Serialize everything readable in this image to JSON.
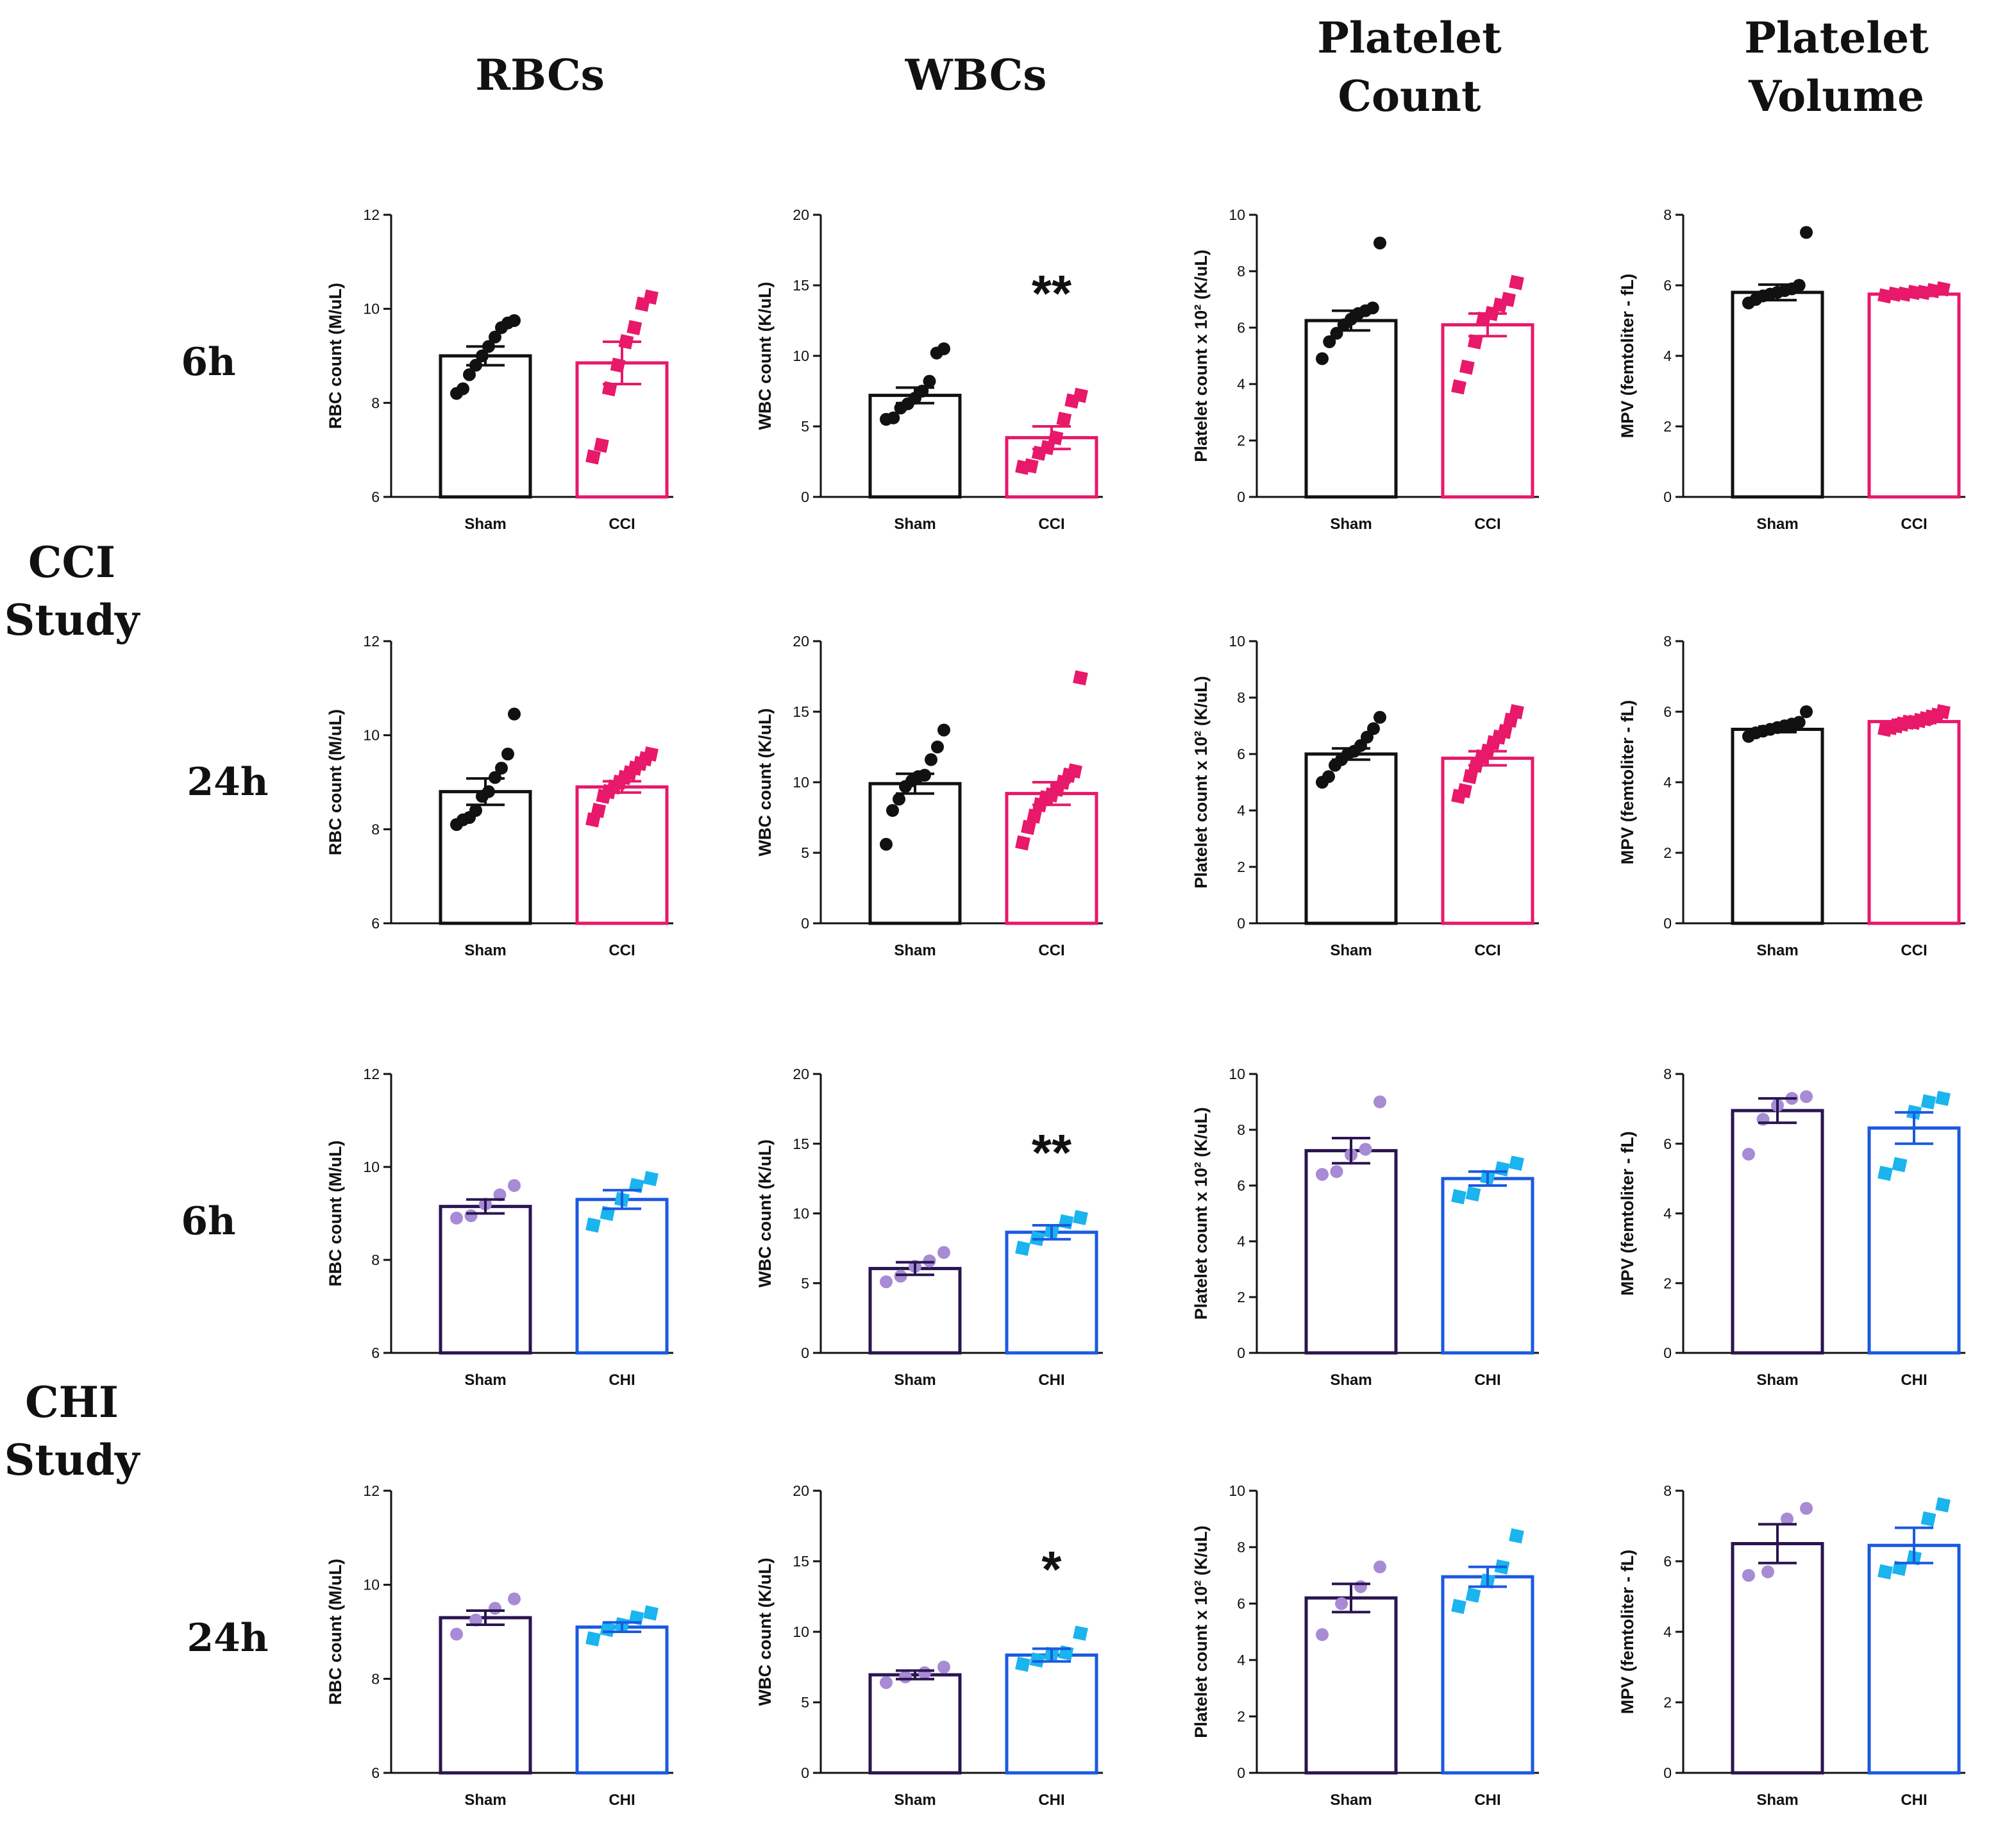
{
  "column_headers": [
    {
      "line1": "RBCs",
      "line2": ""
    },
    {
      "line1": "WBCs",
      "line2": ""
    },
    {
      "line1": "Platelet",
      "line2": "Count"
    },
    {
      "line1": "Platelet",
      "line2": "Volume"
    }
  ],
  "time_labels": [
    "6h",
    "24h",
    "6h",
    "24h"
  ],
  "study_labels": [
    {
      "line1": "CCI",
      "line2": "Study"
    },
    {
      "line1": "CHI",
      "line2": "Study"
    }
  ],
  "colors": {
    "sham_cci": "#111111",
    "cci": "#e8186a",
    "sham_chi_bar": "#2a1550",
    "sham_chi_dot": "#a78bd4",
    "chi_bar": "#1a5ae0",
    "chi_dot": "#1ab4ee"
  },
  "chart_data": [
    {
      "type": "bar",
      "row": 0,
      "col": 0,
      "ylabel": "RBC count (M/uL)",
      "ylim": [
        6,
        12
      ],
      "yticks": [
        6,
        8,
        10,
        12
      ],
      "categories": [
        "Sham",
        "CCI"
      ],
      "series": [
        {
          "name": "Sham",
          "mean": 9.0,
          "sem": 0.2,
          "points": [
            8.2,
            8.3,
            8.6,
            8.8,
            9.0,
            9.2,
            9.4,
            9.6,
            9.7,
            9.75
          ]
        },
        {
          "name": "CCI",
          "mean": 8.85,
          "sem": 0.45,
          "points": [
            6.85,
            7.1,
            8.3,
            8.8,
            9.3,
            9.6,
            10.1,
            10.25
          ]
        }
      ],
      "significance": ""
    },
    {
      "type": "bar",
      "row": 0,
      "col": 1,
      "ylabel": "WBC count (K/uL)",
      "ylim": [
        0,
        20
      ],
      "yticks": [
        0,
        5,
        10,
        15,
        20
      ],
      "categories": [
        "Sham",
        "CCI"
      ],
      "series": [
        {
          "name": "Sham",
          "mean": 7.2,
          "sem": 0.55,
          "points": [
            5.5,
            5.6,
            6.3,
            6.6,
            7.0,
            7.5,
            8.2,
            10.2,
            10.5
          ]
        },
        {
          "name": "CCI",
          "mean": 4.2,
          "sem": 0.8,
          "points": [
            2.1,
            2.2,
            3.1,
            3.5,
            4.2,
            5.5,
            6.8,
            7.2
          ]
        }
      ],
      "significance": "**"
    },
    {
      "type": "bar",
      "row": 0,
      "col": 2,
      "ylabel": "Platelet count x 10² (K/uL)",
      "ylim": [
        0,
        10
      ],
      "yticks": [
        0,
        2,
        4,
        6,
        8,
        10
      ],
      "categories": [
        "Sham",
        "CCI"
      ],
      "series": [
        {
          "name": "Sham",
          "mean": 6.25,
          "sem": 0.35,
          "points": [
            4.9,
            5.5,
            5.8,
            6.1,
            6.3,
            6.5,
            6.6,
            6.7,
            9.0
          ]
        },
        {
          "name": "CCI",
          "mean": 6.1,
          "sem": 0.4,
          "points": [
            3.9,
            4.6,
            5.5,
            6.3,
            6.5,
            6.8,
            7.0,
            7.6
          ]
        }
      ],
      "significance": ""
    },
    {
      "type": "bar",
      "row": 0,
      "col": 3,
      "ylabel": "MPV (femtoliter - fL)",
      "ylim": [
        0,
        8
      ],
      "yticks": [
        0,
        2,
        4,
        6,
        8
      ],
      "categories": [
        "Sham",
        "CCI"
      ],
      "series": [
        {
          "name": "Sham",
          "mean": 5.8,
          "sem": 0.22,
          "points": [
            5.5,
            5.6,
            5.7,
            5.75,
            5.8,
            5.85,
            5.9,
            6.0,
            7.5
          ]
        },
        {
          "name": "CCI",
          "mean": 5.75,
          "sem": 0.05,
          "points": [
            5.7,
            5.75,
            5.75,
            5.8,
            5.8,
            5.85,
            5.9
          ]
        }
      ],
      "significance": ""
    },
    {
      "type": "bar",
      "row": 1,
      "col": 0,
      "ylabel": "RBC count (M/uL)",
      "ylim": [
        6,
        12
      ],
      "yticks": [
        6,
        8,
        10,
        12
      ],
      "categories": [
        "Sham",
        "CCI"
      ],
      "series": [
        {
          "name": "Sham",
          "mean": 8.8,
          "sem": 0.28,
          "points": [
            8.1,
            8.2,
            8.25,
            8.4,
            8.7,
            8.8,
            9.1,
            9.3,
            9.6,
            10.45
          ]
        },
        {
          "name": "CCI",
          "mean": 8.9,
          "sem": 0.12,
          "points": [
            8.2,
            8.4,
            8.7,
            8.8,
            8.9,
            9.0,
            9.1,
            9.2,
            9.3,
            9.4,
            9.5,
            9.6
          ]
        }
      ],
      "significance": ""
    },
    {
      "type": "bar",
      "row": 1,
      "col": 1,
      "ylabel": "WBC count (K/uL)",
      "ylim": [
        0,
        20
      ],
      "yticks": [
        0,
        5,
        10,
        15,
        20
      ],
      "categories": [
        "Sham",
        "CCI"
      ],
      "series": [
        {
          "name": "Sham",
          "mean": 9.9,
          "sem": 0.7,
          "points": [
            5.6,
            8.0,
            8.8,
            9.7,
            10.1,
            10.4,
            10.5,
            11.6,
            12.5,
            13.7
          ]
        },
        {
          "name": "CCI",
          "mean": 9.2,
          "sem": 0.8,
          "points": [
            5.7,
            6.8,
            7.6,
            8.4,
            8.9,
            9.1,
            9.5,
            10.0,
            10.5,
            10.8,
            17.4
          ]
        }
      ],
      "significance": ""
    },
    {
      "type": "bar",
      "row": 1,
      "col": 2,
      "ylabel": "Platelet count x 10² (K/uL)",
      "ylim": [
        0,
        10
      ],
      "yticks": [
        0,
        2,
        4,
        6,
        8,
        10
      ],
      "categories": [
        "Sham",
        "CCI"
      ],
      "series": [
        {
          "name": "Sham",
          "mean": 6.0,
          "sem": 0.2,
          "points": [
            5.0,
            5.2,
            5.6,
            5.8,
            6.0,
            6.1,
            6.3,
            6.6,
            6.9,
            7.3
          ]
        },
        {
          "name": "CCI",
          "mean": 5.85,
          "sem": 0.25,
          "points": [
            4.5,
            4.7,
            5.2,
            5.6,
            5.9,
            6.1,
            6.4,
            6.6,
            6.8,
            7.2,
            7.5
          ]
        }
      ],
      "significance": ""
    },
    {
      "type": "bar",
      "row": 1,
      "col": 3,
      "ylabel": "MPV (femtoliter - fL)",
      "ylim": [
        0,
        8
      ],
      "yticks": [
        0,
        2,
        4,
        6,
        8
      ],
      "categories": [
        "Sham",
        "CCI"
      ],
      "series": [
        {
          "name": "Sham",
          "mean": 5.5,
          "sem": 0.08,
          "points": [
            5.3,
            5.4,
            5.45,
            5.5,
            5.55,
            5.6,
            5.65,
            5.7,
            6.0
          ]
        },
        {
          "name": "CCI",
          "mean": 5.72,
          "sem": 0.06,
          "points": [
            5.5,
            5.55,
            5.6,
            5.65,
            5.7,
            5.7,
            5.75,
            5.8,
            5.85,
            5.9,
            6.0
          ]
        }
      ],
      "significance": ""
    },
    {
      "type": "bar",
      "row": 2,
      "col": 0,
      "ylabel": "RBC count (M/uL)",
      "ylim": [
        6,
        12
      ],
      "yticks": [
        6,
        8,
        10,
        12
      ],
      "categories": [
        "Sham",
        "CHI"
      ],
      "series": [
        {
          "name": "Sham",
          "mean": 9.15,
          "sem": 0.15,
          "points": [
            8.9,
            8.95,
            9.2,
            9.4,
            9.6
          ]
        },
        {
          "name": "CHI",
          "mean": 9.3,
          "sem": 0.2,
          "points": [
            8.75,
            9.0,
            9.3,
            9.6,
            9.75
          ]
        }
      ],
      "significance": ""
    },
    {
      "type": "bar",
      "row": 2,
      "col": 1,
      "ylabel": "WBC count (K/uL)",
      "ylim": [
        0,
        20
      ],
      "yticks": [
        0,
        5,
        10,
        15,
        20
      ],
      "categories": [
        "Sham",
        "CHI"
      ],
      "series": [
        {
          "name": "Sham",
          "mean": 6.05,
          "sem": 0.45,
          "points": [
            5.1,
            5.5,
            6.2,
            6.6,
            7.2
          ]
        },
        {
          "name": "CHI",
          "mean": 8.65,
          "sem": 0.5,
          "points": [
            7.5,
            8.2,
            8.7,
            9.4,
            9.7
          ]
        }
      ],
      "significance": "**"
    },
    {
      "type": "bar",
      "row": 2,
      "col": 2,
      "ylabel": "Platelet count x 10² (K/uL)",
      "ylim": [
        0,
        10
      ],
      "yticks": [
        0,
        2,
        4,
        6,
        8,
        10
      ],
      "categories": [
        "Sham",
        "CHI"
      ],
      "series": [
        {
          "name": "Sham",
          "mean": 7.25,
          "sem": 0.45,
          "points": [
            6.4,
            6.5,
            7.1,
            7.3,
            9.0
          ]
        },
        {
          "name": "CHI",
          "mean": 6.25,
          "sem": 0.25,
          "points": [
            5.6,
            5.7,
            6.3,
            6.6,
            6.8
          ]
        }
      ],
      "significance": ""
    },
    {
      "type": "bar",
      "row": 2,
      "col": 3,
      "ylabel": "MPV (femtoliter - fL)",
      "ylim": [
        0,
        8
      ],
      "yticks": [
        0,
        2,
        4,
        6,
        8
      ],
      "categories": [
        "Sham",
        "CHI"
      ],
      "series": [
        {
          "name": "Sham",
          "mean": 6.95,
          "sem": 0.35,
          "points": [
            5.7,
            6.7,
            7.1,
            7.3,
            7.35
          ]
        },
        {
          "name": "CHI",
          "mean": 6.45,
          "sem": 0.45,
          "points": [
            5.15,
            5.4,
            6.9,
            7.2,
            7.3
          ]
        }
      ],
      "significance": ""
    },
    {
      "type": "bar",
      "row": 3,
      "col": 0,
      "ylabel": "RBC count (M/uL)",
      "ylim": [
        6,
        12
      ],
      "yticks": [
        6,
        8,
        10,
        12
      ],
      "categories": [
        "Sham",
        "CHI"
      ],
      "series": [
        {
          "name": "Sham",
          "mean": 9.3,
          "sem": 0.15,
          "points": [
            8.95,
            9.25,
            9.5,
            9.7
          ]
        },
        {
          "name": "CHI",
          "mean": 9.1,
          "sem": 0.1,
          "points": [
            8.85,
            9.05,
            9.15,
            9.3,
            9.4
          ]
        }
      ],
      "significance": ""
    },
    {
      "type": "bar",
      "row": 3,
      "col": 1,
      "ylabel": "WBC count (K/uL)",
      "ylim": [
        0,
        20
      ],
      "yticks": [
        0,
        5,
        10,
        15,
        20
      ],
      "categories": [
        "Sham",
        "CHI"
      ],
      "series": [
        {
          "name": "Sham",
          "mean": 6.95,
          "sem": 0.3,
          "points": [
            6.4,
            6.8,
            7.1,
            7.5
          ]
        },
        {
          "name": "CHI",
          "mean": 8.35,
          "sem": 0.45,
          "points": [
            7.7,
            8.0,
            8.4,
            8.5,
            9.9
          ]
        }
      ],
      "significance": "*"
    },
    {
      "type": "bar",
      "row": 3,
      "col": 2,
      "ylabel": "Platelet count x 10² (K/uL)",
      "ylim": [
        0,
        10
      ],
      "yticks": [
        0,
        2,
        4,
        6,
        8,
        10
      ],
      "categories": [
        "Sham",
        "CHI"
      ],
      "series": [
        {
          "name": "Sham",
          "mean": 6.2,
          "sem": 0.5,
          "points": [
            4.9,
            6.0,
            6.6,
            7.3
          ]
        },
        {
          "name": "CHI",
          "mean": 6.95,
          "sem": 0.35,
          "points": [
            5.9,
            6.3,
            6.8,
            7.3,
            8.4
          ]
        }
      ],
      "significance": ""
    },
    {
      "type": "bar",
      "row": 3,
      "col": 3,
      "ylabel": "MPV (femtoliter - fL)",
      "ylim": [
        0,
        8
      ],
      "yticks": [
        0,
        2,
        4,
        6,
        8
      ],
      "categories": [
        "Sham",
        "CHI"
      ],
      "series": [
        {
          "name": "Sham",
          "mean": 6.5,
          "sem": 0.55,
          "points": [
            5.6,
            5.7,
            7.2,
            7.5
          ]
        },
        {
          "name": "CHI",
          "mean": 6.45,
          "sem": 0.5,
          "points": [
            5.7,
            5.8,
            6.1,
            7.2,
            7.6
          ]
        }
      ],
      "significance": ""
    }
  ]
}
